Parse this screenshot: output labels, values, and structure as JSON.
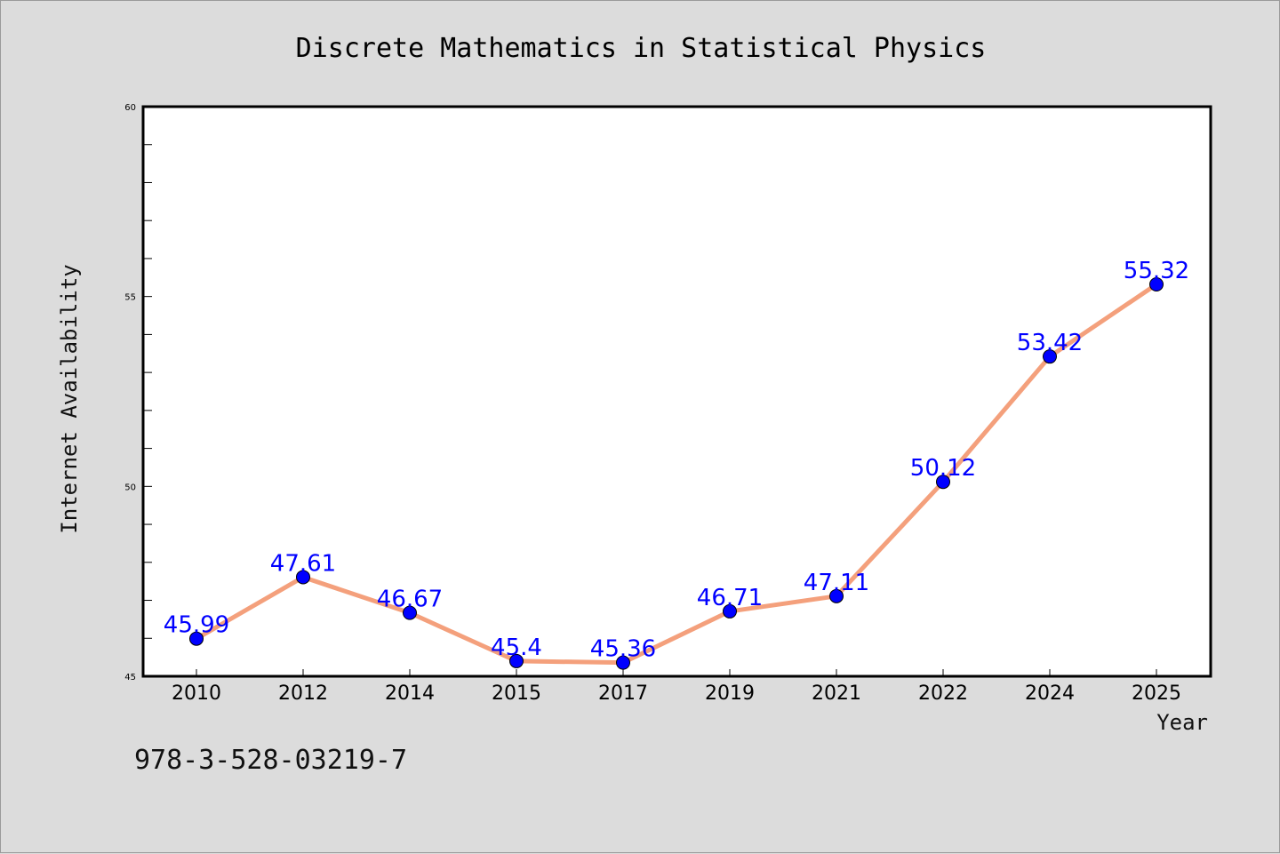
{
  "chart_data": {
    "type": "line",
    "title": "Discrete Mathematics in Statistical Physics",
    "xlabel": "Year",
    "ylabel": "Internet Availability",
    "categories": [
      "2010",
      "2012",
      "2014",
      "2015",
      "2017",
      "2019",
      "2021",
      "2022",
      "2024",
      "2025"
    ],
    "series": [
      {
        "values": [
          45.99,
          47.61,
          46.67,
          45.4,
          45.36,
          46.71,
          47.11,
          50.12,
          53.42,
          55.32
        ],
        "line_color": "#f4a07c",
        "marker_color": "#0000ff"
      }
    ],
    "ylim": [
      45,
      60
    ],
    "yticks": [
      45,
      50,
      55,
      60
    ],
    "data_labels": [
      "45.99",
      "47.61",
      "46.67",
      "45.4",
      "45.36",
      "46.71",
      "47.11",
      "50.12",
      "53.42",
      "55.32"
    ],
    "grid": false,
    "legend": "none"
  },
  "footnote": "978-3-528-03219-7",
  "colors": {
    "background": "#dcdcdc",
    "plot_background": "#ffffff",
    "line": "#f4a07c",
    "markers": "#0000ff",
    "data_labels": "#0000ff"
  }
}
